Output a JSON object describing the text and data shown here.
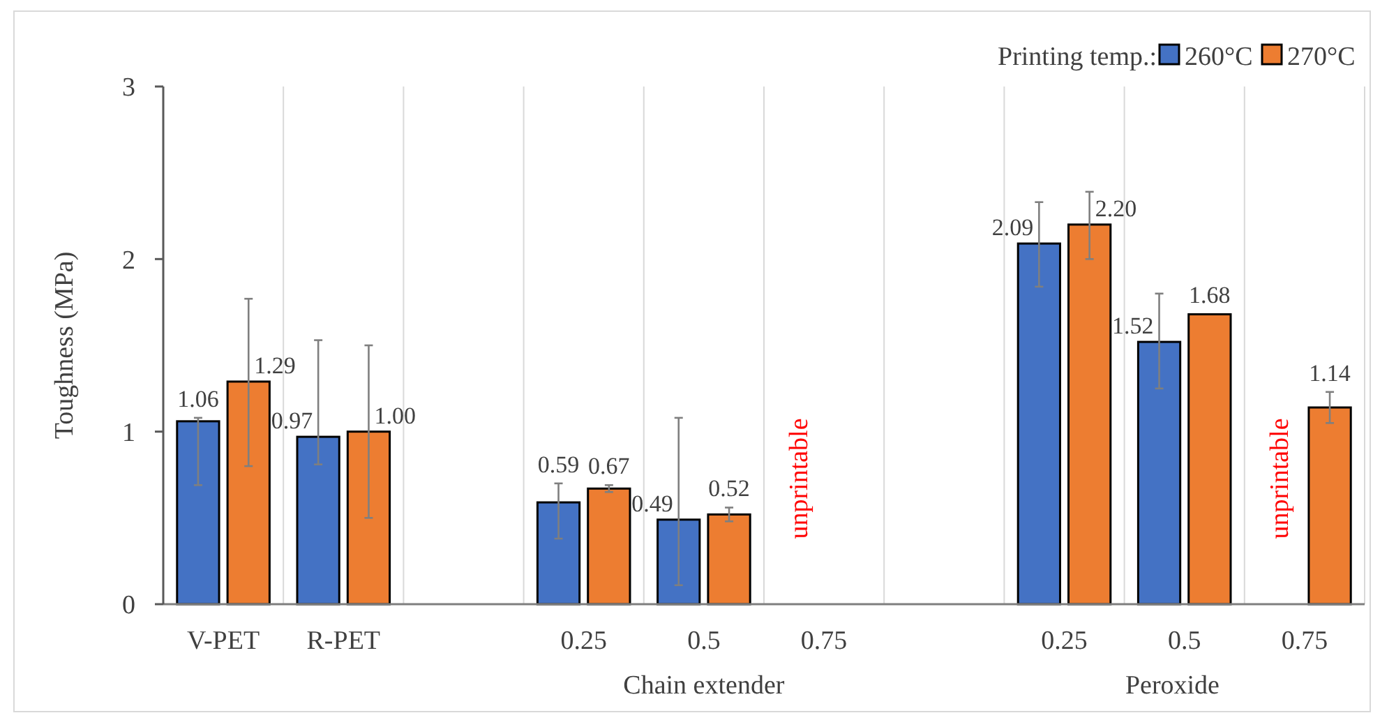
{
  "chart_data": {
    "type": "bar",
    "ylabel": "Toughness (MPa)",
    "legend_title": "Printing temp.:",
    "legend": "top right",
    "grid": "x",
    "categories": [
      "V-PET",
      "R-PET",
      null,
      "0.25",
      "0.5",
      "0.75",
      null,
      "0.25",
      "0.5",
      "0.75"
    ],
    "ylim": [
      0,
      3
    ],
    "yticks": [
      0,
      1,
      2,
      3
    ],
    "series": [
      {
        "name": "260°C",
        "color": "#4472c4",
        "values": [
          1.06,
          0.97,
          null,
          0.59,
          0.49,
          null,
          null,
          2.09,
          1.52,
          null
        ],
        "value_labels": [
          "1.06",
          "0.97",
          null,
          "0.59",
          "0.49",
          null,
          null,
          "2.09",
          "1.52",
          null
        ],
        "errors": [
          [
            0.69,
            1.08
          ],
          [
            0.81,
            1.53
          ],
          null,
          [
            0.38,
            0.7
          ],
          [
            0.11,
            1.08
          ],
          null,
          null,
          [
            1.84,
            2.33
          ],
          [
            1.25,
            1.8
          ],
          null
        ]
      },
      {
        "name": "270°C",
        "color": "#ed7d31",
        "values": [
          1.29,
          1.0,
          null,
          0.67,
          0.52,
          null,
          null,
          2.2,
          1.68,
          1.14
        ],
        "value_labels": [
          "1.29",
          "1.00",
          null,
          "0.67",
          "0.52",
          null,
          null,
          "2.20",
          "1.68",
          "1.14"
        ],
        "errors": [
          [
            0.8,
            1.77
          ],
          [
            0.5,
            1.5
          ],
          null,
          [
            0.65,
            0.69
          ],
          [
            0.48,
            0.56
          ],
          null,
          null,
          [
            2.0,
            2.39
          ],
          null,
          [
            1.05,
            1.23
          ]
        ]
      }
    ],
    "annotations": [
      "unprintable",
      "unprintable",
      "Chain extender",
      "Peroxide"
    ]
  }
}
